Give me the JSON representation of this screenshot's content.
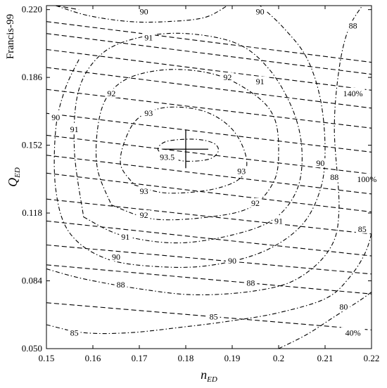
{
  "chart_data": {
    "type": "contour",
    "side_title": "Francis-99",
    "xlabel": {
      "main": "n",
      "sub": "ED"
    },
    "ylabel": {
      "main": "Q",
      "sub": "ED"
    },
    "xlim": [
      0.15,
      0.22
    ],
    "ylim": [
      0.05,
      0.222
    ],
    "x_ticks": [
      "0.15",
      "0.16",
      "0.17",
      "0.18",
      "0.19",
      "0.2",
      "0.21",
      "0.22"
    ],
    "y_ticks": [
      "0.050",
      "0.084",
      "0.118",
      "0.152",
      "0.186",
      "0.220"
    ],
    "best_efficiency_point": {
      "x": 0.18,
      "y": 0.15
    },
    "efficiency_contours": [
      {
        "level": "93.5",
        "points": [
          [
            0.176,
            0.146
          ],
          [
            0.18,
            0.144
          ],
          [
            0.185,
            0.145
          ],
          [
            0.187,
            0.149
          ],
          [
            0.186,
            0.153
          ],
          [
            0.182,
            0.155
          ],
          [
            0.176,
            0.154
          ],
          [
            0.174,
            0.15
          ],
          [
            0.176,
            0.146
          ]
        ],
        "labels": [
          {
            "text": "93.5",
            "x": 0.176,
            "y": 0.146
          }
        ]
      },
      {
        "level": "93",
        "points": [
          [
            0.169,
            0.132
          ],
          [
            0.176,
            0.128
          ],
          [
            0.186,
            0.13
          ],
          [
            0.192,
            0.136
          ],
          [
            0.193,
            0.146
          ],
          [
            0.19,
            0.16
          ],
          [
            0.184,
            0.169
          ],
          [
            0.176,
            0.171
          ],
          [
            0.17,
            0.166
          ],
          [
            0.167,
            0.155
          ],
          [
            0.166,
            0.142
          ],
          [
            0.169,
            0.132
          ]
        ],
        "labels": [
          {
            "text": "93",
            "x": 0.172,
            "y": 0.168
          },
          {
            "text": "93",
            "x": 0.192,
            "y": 0.139
          },
          {
            "text": "93",
            "x": 0.171,
            "y": 0.129
          }
        ]
      },
      {
        "level": "92",
        "points": [
          [
            0.164,
            0.122
          ],
          [
            0.173,
            0.115
          ],
          [
            0.185,
            0.116
          ],
          [
            0.194,
            0.121
          ],
          [
            0.199,
            0.134
          ],
          [
            0.2,
            0.15
          ],
          [
            0.199,
            0.166
          ],
          [
            0.195,
            0.177
          ],
          [
            0.187,
            0.187
          ],
          [
            0.177,
            0.19
          ],
          [
            0.168,
            0.186
          ],
          [
            0.163,
            0.176
          ],
          [
            0.161,
            0.16
          ],
          [
            0.161,
            0.14
          ],
          [
            0.164,
            0.122
          ]
        ],
        "labels": [
          {
            "text": "92",
            "x": 0.164,
            "y": 0.178
          },
          {
            "text": "92",
            "x": 0.189,
            "y": 0.186
          },
          {
            "text": "92",
            "x": 0.195,
            "y": 0.123
          },
          {
            "text": "92",
            "x": 0.171,
            "y": 0.117
          }
        ]
      },
      {
        "level": "91",
        "points": [
          [
            0.158,
            0.116
          ],
          [
            0.166,
            0.107
          ],
          [
            0.178,
            0.103
          ],
          [
            0.19,
            0.107
          ],
          [
            0.199,
            0.115
          ],
          [
            0.204,
            0.13
          ],
          [
            0.205,
            0.15
          ],
          [
            0.203,
            0.17
          ],
          [
            0.198,
            0.19
          ],
          [
            0.191,
            0.203
          ],
          [
            0.18,
            0.208
          ],
          [
            0.17,
            0.206
          ],
          [
            0.162,
            0.198
          ],
          [
            0.157,
            0.18
          ],
          [
            0.156,
            0.15
          ],
          [
            0.158,
            0.116
          ]
        ],
        "labels": [
          {
            "text": "91",
            "x": 0.156,
            "y": 0.16
          },
          {
            "text": "91",
            "x": 0.172,
            "y": 0.206
          },
          {
            "text": "91",
            "x": 0.196,
            "y": 0.184
          },
          {
            "text": "91",
            "x": 0.2,
            "y": 0.114
          },
          {
            "text": "91",
            "x": 0.167,
            "y": 0.106
          }
        ]
      },
      {
        "level": "90",
        "points": [
          [
            0.152,
            0.222
          ],
          [
            0.159,
            0.217
          ],
          [
            0.168,
            0.214
          ],
          [
            0.176,
            0.214
          ],
          [
            0.184,
            0.216
          ],
          [
            0.189,
            0.222
          ]
        ],
        "labels": [
          {
            "text": "90",
            "x": 0.171,
            "y": 0.219
          }
        ]
      },
      {
        "level": "90",
        "points": [
          [
            0.196,
            0.222
          ],
          [
            0.201,
            0.211
          ],
          [
            0.206,
            0.196
          ],
          [
            0.209,
            0.175
          ],
          [
            0.21,
            0.15
          ],
          [
            0.209,
            0.13
          ],
          [
            0.205,
            0.112
          ],
          [
            0.197,
            0.099
          ],
          [
            0.186,
            0.092
          ],
          [
            0.175,
            0.091
          ],
          [
            0.163,
            0.095
          ],
          [
            0.155,
            0.108
          ],
          [
            0.152,
            0.13
          ],
          [
            0.152,
            0.16
          ],
          [
            0.154,
            0.18
          ],
          [
            0.157,
            0.195
          ]
        ],
        "labels": [
          {
            "text": "90",
            "x": 0.196,
            "y": 0.219
          },
          {
            "text": "90",
            "x": 0.209,
            "y": 0.143
          },
          {
            "text": "90",
            "x": 0.19,
            "y": 0.094
          },
          {
            "text": "90",
            "x": 0.165,
            "y": 0.096
          },
          {
            "text": "90",
            "x": 0.152,
            "y": 0.166
          }
        ]
      },
      {
        "level": "88",
        "points": [
          [
            0.15,
            0.09
          ],
          [
            0.158,
            0.085
          ],
          [
            0.17,
            0.08
          ],
          [
            0.182,
            0.077
          ],
          [
            0.195,
            0.079
          ],
          [
            0.204,
            0.085
          ],
          [
            0.211,
            0.1
          ],
          [
            0.213,
            0.12
          ],
          [
            0.212,
            0.16
          ],
          [
            0.213,
            0.19
          ],
          [
            0.215,
            0.21
          ],
          [
            0.218,
            0.222
          ]
        ],
        "labels": [
          {
            "text": "88",
            "x": 0.166,
            "y": 0.082
          },
          {
            "text": "88",
            "x": 0.194,
            "y": 0.083
          },
          {
            "text": "88",
            "x": 0.212,
            "y": 0.136
          },
          {
            "text": "88",
            "x": 0.216,
            "y": 0.212
          }
        ]
      },
      {
        "level": "85",
        "points": [
          [
            0.15,
            0.062
          ],
          [
            0.158,
            0.058
          ],
          [
            0.168,
            0.058
          ],
          [
            0.18,
            0.061
          ],
          [
            0.19,
            0.064
          ],
          [
            0.2,
            0.068
          ],
          [
            0.21,
            0.075
          ],
          [
            0.215,
            0.085
          ],
          [
            0.219,
            0.1
          ],
          [
            0.221,
            0.12
          ],
          [
            0.222,
            0.135
          ]
        ],
        "labels": [
          {
            "text": "85",
            "x": 0.156,
            "y": 0.058
          },
          {
            "text": "85",
            "x": 0.186,
            "y": 0.066
          },
          {
            "text": "85",
            "x": 0.218,
            "y": 0.11
          }
        ]
      },
      {
        "level": "80",
        "points": [
          [
            0.2,
            0.05
          ],
          [
            0.206,
            0.057
          ],
          [
            0.212,
            0.066
          ],
          [
            0.218,
            0.075
          ],
          [
            0.222,
            0.082
          ]
        ],
        "labels": [
          {
            "text": "80",
            "x": 0.214,
            "y": 0.071
          }
        ]
      }
    ],
    "opening_lines": [
      {
        "points": [
          [
            0.152,
            0.222
          ],
          [
            0.157,
            0.22
          ]
        ]
      },
      {
        "points": [
          [
            0.15,
            0.214
          ],
          [
            0.222,
            0.193
          ]
        ]
      },
      {
        "points": [
          [
            0.15,
            0.208
          ],
          [
            0.222,
            0.187
          ]
        ]
      },
      {
        "points": [
          [
            0.15,
            0.2
          ],
          [
            0.222,
            0.179
          ]
        ]
      },
      {
        "points": [
          [
            0.15,
            0.191
          ],
          [
            0.222,
            0.17
          ]
        ],
        "label": "140%",
        "label_x": 0.216,
        "label_y": 0.178
      },
      {
        "points": [
          [
            0.15,
            0.18
          ],
          [
            0.222,
            0.16
          ]
        ]
      },
      {
        "points": [
          [
            0.15,
            0.168
          ],
          [
            0.222,
            0.148
          ]
        ]
      },
      {
        "points": [
          [
            0.15,
            0.157
          ],
          [
            0.222,
            0.137
          ]
        ]
      },
      {
        "points": [
          [
            0.15,
            0.147
          ],
          [
            0.222,
            0.127
          ]
        ]
      },
      {
        "points": [
          [
            0.15,
            0.138
          ],
          [
            0.222,
            0.118
          ]
        ],
        "label": "100%",
        "label_x": 0.219,
        "label_y": 0.135
      },
      {
        "points": [
          [
            0.15,
            0.125
          ],
          [
            0.222,
            0.107
          ]
        ]
      },
      {
        "points": [
          [
            0.15,
            0.114
          ],
          [
            0.222,
            0.096
          ]
        ]
      },
      {
        "points": [
          [
            0.15,
            0.102
          ],
          [
            0.222,
            0.087
          ]
        ]
      },
      {
        "points": [
          [
            0.15,
            0.092
          ],
          [
            0.222,
            0.077
          ]
        ]
      },
      {
        "points": [
          [
            0.15,
            0.073
          ],
          [
            0.222,
            0.059
          ]
        ],
        "label": "40%",
        "label_x": 0.216,
        "label_y": 0.058
      }
    ]
  }
}
